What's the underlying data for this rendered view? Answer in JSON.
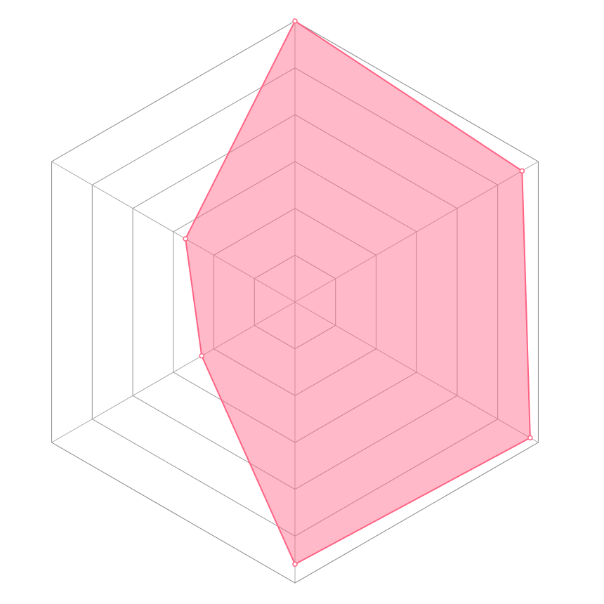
{
  "chart_data": {
    "type": "radar",
    "categories": [
      null,
      null,
      null,
      null,
      null,
      null
    ],
    "series": [
      {
        "color": "#ff6384",
        "values": [
          6,
          5.6,
          5.8,
          5.6,
          2.3,
          2.7
        ]
      }
    ],
    "ylim": [
      0,
      6
    ],
    "yticks": [
      1,
      2,
      3,
      4,
      5,
      6
    ],
    "grid": true
  }
}
